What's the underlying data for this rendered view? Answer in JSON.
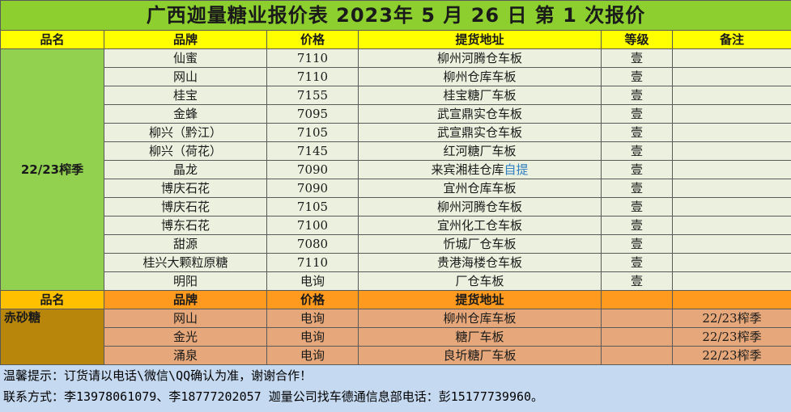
{
  "title": "广西迦量糖业报价表 2023年 5 月 26 日 第 1 次报价",
  "header1": [
    "品名",
    "品牌",
    "价格",
    "提货地址",
    "等级",
    "备注"
  ],
  "group1": "22/23榨季",
  "rows1": [
    {
      "brand": "仙蜜",
      "price": "7110",
      "addr": "柳州河腾仓车板",
      "addr_suffix": "",
      "grade": "壹",
      "note": ""
    },
    {
      "brand": "网山",
      "price": "7110",
      "addr": "柳州仓库车板",
      "addr_suffix": "",
      "grade": "壹",
      "note": ""
    },
    {
      "brand": "桂宝",
      "price": "7155",
      "addr": "桂宝糖厂车板",
      "addr_suffix": "",
      "grade": "壹",
      "note": ""
    },
    {
      "brand": "金蜂",
      "price": "7095",
      "addr": "武宣鼎实仓车板",
      "addr_suffix": "",
      "grade": "壹",
      "note": ""
    },
    {
      "brand": "柳兴（黔江）",
      "price": "7105",
      "addr": "武宣鼎实仓车板",
      "addr_suffix": "",
      "grade": "壹",
      "note": ""
    },
    {
      "brand": "柳兴（荷花）",
      "price": "7145",
      "addr": "红河糖厂车板",
      "addr_suffix": "",
      "grade": "壹",
      "note": ""
    },
    {
      "brand": "晶龙",
      "price": "7090",
      "addr": "来宾湘桂仓库",
      "addr_suffix": "自提",
      "grade": "壹",
      "note": ""
    },
    {
      "brand": "博庆石花",
      "price": "7090",
      "addr": "宜州仓库车板",
      "addr_suffix": "",
      "grade": "壹",
      "note": ""
    },
    {
      "brand": "博庆石花",
      "price": "7105",
      "addr": "柳州河腾仓车板",
      "addr_suffix": "",
      "grade": "壹",
      "note": ""
    },
    {
      "brand": "博东石花",
      "price": "7100",
      "addr": "宜州化工仓车板",
      "addr_suffix": "",
      "grade": "壹",
      "note": ""
    },
    {
      "brand": "甜源",
      "price": "7080",
      "addr": "忻城厂仓车板",
      "addr_suffix": "",
      "grade": "壹",
      "note": ""
    },
    {
      "brand": "桂兴大颗粒原糖",
      "price": "7110",
      "addr": "贵港海楼仓车板",
      "addr_suffix": "",
      "grade": "壹",
      "note": ""
    },
    {
      "brand": "明阳",
      "price": "电询",
      "addr": "厂仓车板",
      "addr_suffix": "",
      "grade": "壹",
      "note": ""
    }
  ],
  "header2": [
    "品名",
    "品牌",
    "价格",
    "提货地址",
    "",
    ""
  ],
  "group2": "赤砂糖",
  "rows2": [
    {
      "brand": "网山",
      "price": "电询",
      "addr": "柳州仓库车板",
      "grade": "",
      "note": "22/23榨季"
    },
    {
      "brand": "金光",
      "price": "电询",
      "addr": "糖厂车板",
      "grade": "",
      "note": "22/23榨季"
    },
    {
      "brand": "涌泉",
      "price": "电询",
      "addr": "良圻糖厂车板",
      "grade": "",
      "note": "22/23榨季"
    }
  ],
  "notes": {
    "line1": "温馨提示：订货请以电话\\微信\\QQ确认为准，谢谢合作！",
    "line2": "联系方式：李13978061079、李18777202057   迦量公司找车德通信息部电话：彭15177739960。"
  }
}
